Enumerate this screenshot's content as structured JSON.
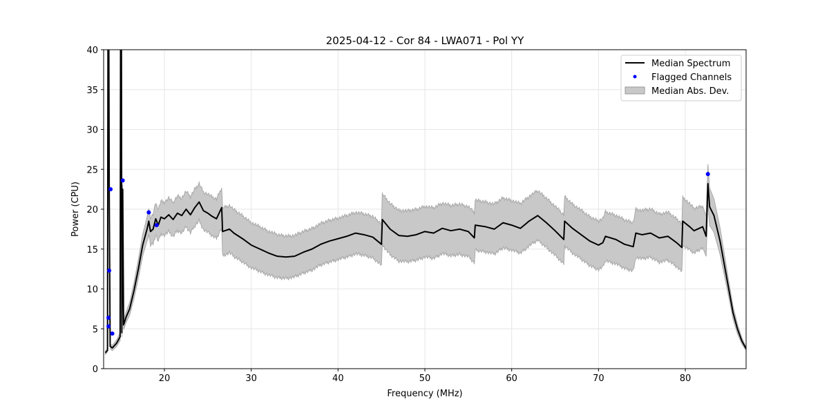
{
  "chart_data": {
    "type": "line",
    "title": "2025-04-12 - Cor 84 - LWA071 - Pol YY",
    "xlabel": "Frequency (MHz)",
    "ylabel": "Power (CPU)",
    "xlim": [
      13,
      87
    ],
    "ylim": [
      0,
      40
    ],
    "xticks": [
      20,
      30,
      40,
      50,
      60,
      70,
      80
    ],
    "yticks": [
      0,
      5,
      10,
      15,
      20,
      25,
      30,
      35,
      40
    ],
    "grid": true,
    "legend_position": "top-right",
    "legend": [
      "Median Spectrum",
      "Flagged Channels",
      "Median Abs. Dev."
    ],
    "median": [
      [
        13.2,
        2.0
      ],
      [
        13.45,
        2.3
      ],
      [
        13.5,
        40
      ],
      [
        13.6,
        40
      ],
      [
        13.65,
        21.4
      ],
      [
        13.75,
        2.8
      ],
      [
        14.0,
        2.6
      ],
      [
        14.5,
        3.2
      ],
      [
        14.9,
        4.0
      ],
      [
        14.95,
        40
      ],
      [
        15.05,
        40
      ],
      [
        15.1,
        4.5
      ],
      [
        15.2,
        22.5
      ],
      [
        15.3,
        5.5
      ],
      [
        15.6,
        6.5
      ],
      [
        16,
        7.5
      ],
      [
        16.5,
        9.8
      ],
      [
        17,
        12.5
      ],
      [
        17.5,
        15.5
      ],
      [
        18.0,
        17.5
      ],
      [
        18.2,
        18.5
      ],
      [
        18.4,
        17.2
      ],
      [
        18.7,
        17.5
      ],
      [
        19.0,
        18.8
      ],
      [
        19.3,
        18.0
      ],
      [
        19.6,
        19.0
      ],
      [
        20,
        18.8
      ],
      [
        20.5,
        19.3
      ],
      [
        21,
        18.7
      ],
      [
        21.5,
        19.5
      ],
      [
        22,
        19.2
      ],
      [
        22.5,
        20.0
      ],
      [
        23,
        19.3
      ],
      [
        23.5,
        20.2
      ],
      [
        24,
        20.9
      ],
      [
        24.5,
        19.8
      ],
      [
        25,
        19.5
      ],
      [
        25.5,
        19.1
      ],
      [
        26,
        18.8
      ],
      [
        26.6,
        20.2
      ],
      [
        26.7,
        17.2
      ],
      [
        27.5,
        17.5
      ],
      [
        28,
        17.0
      ],
      [
        29,
        16.3
      ],
      [
        30,
        15.5
      ],
      [
        31,
        15.0
      ],
      [
        32,
        14.5
      ],
      [
        33,
        14.1
      ],
      [
        34,
        14.0
      ],
      [
        35,
        14.1
      ],
      [
        36,
        14.6
      ],
      [
        37,
        15.0
      ],
      [
        38,
        15.6
      ],
      [
        39,
        16.0
      ],
      [
        40,
        16.3
      ],
      [
        41,
        16.6
      ],
      [
        42,
        17.0
      ],
      [
        43,
        16.8
      ],
      [
        44,
        16.5
      ],
      [
        45,
        15.6
      ],
      [
        45.1,
        18.7
      ],
      [
        46,
        17.5
      ],
      [
        47,
        16.7
      ],
      [
        48,
        16.6
      ],
      [
        49,
        16.8
      ],
      [
        50,
        17.2
      ],
      [
        51,
        17.0
      ],
      [
        52,
        17.6
      ],
      [
        53,
        17.3
      ],
      [
        54,
        17.5
      ],
      [
        55,
        17.2
      ],
      [
        55.7,
        16.4
      ],
      [
        55.8,
        18.0
      ],
      [
        57,
        17.8
      ],
      [
        58,
        17.5
      ],
      [
        59,
        18.3
      ],
      [
        60,
        18.0
      ],
      [
        61,
        17.6
      ],
      [
        62,
        18.5
      ],
      [
        63,
        19.2
      ],
      [
        64,
        18.3
      ],
      [
        65,
        17.3
      ],
      [
        66,
        16.2
      ],
      [
        66.1,
        18.5
      ],
      [
        67,
        17.6
      ],
      [
        68,
        16.8
      ],
      [
        69,
        16.0
      ],
      [
        70,
        15.5
      ],
      [
        70.5,
        15.8
      ],
      [
        70.8,
        16.6
      ],
      [
        72,
        16.2
      ],
      [
        73,
        15.6
      ],
      [
        74,
        15.3
      ],
      [
        74.3,
        17.0
      ],
      [
        75,
        16.8
      ],
      [
        76,
        17.0
      ],
      [
        77,
        16.4
      ],
      [
        78,
        16.6
      ],
      [
        79,
        15.8
      ],
      [
        79.6,
        15.2
      ],
      [
        79.7,
        18.5
      ],
      [
        80.5,
        17.8
      ],
      [
        81,
        17.3
      ],
      [
        82,
        17.8
      ],
      [
        82.4,
        16.6
      ],
      [
        82.6,
        23.2
      ],
      [
        82.8,
        20.3
      ],
      [
        83.3,
        19.2
      ],
      [
        84,
        16.0
      ],
      [
        84.5,
        13.0
      ],
      [
        85,
        10.0
      ],
      [
        85.5,
        7.0
      ],
      [
        86,
        5.0
      ],
      [
        86.5,
        3.5
      ],
      [
        87,
        2.5
      ]
    ],
    "mad_halfwidth": [
      [
        13.2,
        0.2
      ],
      [
        15,
        0.5
      ],
      [
        16,
        0.8
      ],
      [
        17,
        1.2
      ],
      [
        18,
        1.5
      ],
      [
        19,
        2.0
      ],
      [
        26.6,
        2.5
      ],
      [
        26.7,
        3.0
      ],
      [
        35,
        2.6
      ],
      [
        45,
        2.6
      ],
      [
        45.1,
        3.2
      ],
      [
        80,
        3.0
      ],
      [
        82.5,
        2.5
      ],
      [
        83.5,
        2.0
      ],
      [
        85,
        1.0
      ],
      [
        87,
        0.2
      ]
    ],
    "flagged": [
      [
        13.56,
        6.4
      ],
      [
        13.56,
        5.3
      ],
      [
        13.64,
        12.3
      ],
      [
        13.8,
        22.5
      ],
      [
        14.0,
        4.4
      ],
      [
        15.2,
        23.6
      ],
      [
        18.2,
        19.6
      ],
      [
        19.1,
        18.0
      ],
      [
        82.6,
        24.4
      ]
    ],
    "colors": {
      "median": "#000000",
      "flagged": "#0000ff",
      "mad": "#c8c8c8"
    }
  }
}
